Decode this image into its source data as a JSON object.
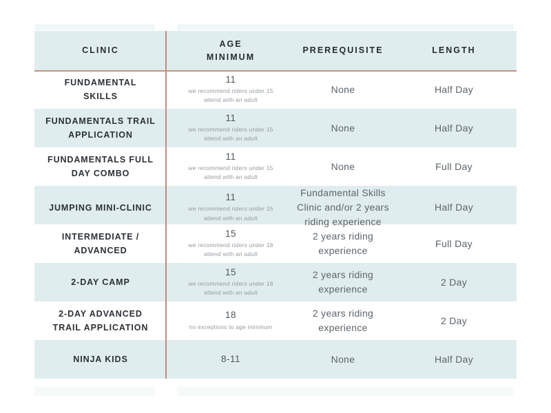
{
  "table": {
    "columns": [
      {
        "label": "CLINIC"
      },
      {
        "label": "AGE\nMINIMUM"
      },
      {
        "label": "PREREQUISITE"
      },
      {
        "label": "LENGTH"
      }
    ],
    "rows": [
      {
        "clinic": "FUNDAMENTAL\nSKILLS",
        "age": "11",
        "age_note": "we recommend riders under 15\nattend with an adult",
        "prerequisite": "None",
        "length": "Half Day"
      },
      {
        "clinic": "FUNDAMENTALS TRAIL\nAPPLICATION",
        "age": "11",
        "age_note": "we recommend riders under 15\nattend with an adult",
        "prerequisite": "None",
        "length": "Half Day"
      },
      {
        "clinic": "FUNDAMENTALS FULL\nDAY COMBO",
        "age": "11",
        "age_note": "we recommend riders under 15\nattend with an adult",
        "prerequisite": "None",
        "length": "Full Day"
      },
      {
        "clinic": "JUMPING MINI-CLINIC",
        "age": "11",
        "age_note": "we recommend riders under 15\nattend with an adult",
        "prerequisite": "Fundamental Skills\nClinic and/or 2 years\nriding experience",
        "length": "Half Day"
      },
      {
        "clinic": "INTERMEDIATE /\nADVANCED",
        "age": "15",
        "age_note": "we recommend riders under 18\nattend with an adult",
        "prerequisite": "2 years riding\nexperience",
        "length": "Full Day"
      },
      {
        "clinic": "2-DAY CAMP",
        "age": "15",
        "age_note": "we recommend riders under 18\nattend with an adult",
        "prerequisite": "2 years riding\nexperience",
        "length": "2 Day"
      },
      {
        "clinic": "2-DAY ADVANCED\nTRAIL APPLICATION",
        "age": "18",
        "age_note": "no exceptions to age minimum",
        "prerequisite": "2 years riding\nexperience",
        "length": "2 Day"
      },
      {
        "clinic": "NINJA KIDS",
        "age": "8-11",
        "age_note": "",
        "prerequisite": "None",
        "length": "Half Day"
      }
    ]
  },
  "chart_data": {
    "type": "table",
    "title": "Clinic comparison table",
    "columns": [
      "CLINIC",
      "AGE MINIMUM",
      "PREREQUISITE",
      "LENGTH"
    ],
    "rows": [
      [
        "FUNDAMENTAL SKILLS",
        "11 (we recommend riders under 15 attend with an adult)",
        "None",
        "Half Day"
      ],
      [
        "FUNDAMENTALS TRAIL APPLICATION",
        "11 (we recommend riders under 15 attend with an adult)",
        "None",
        "Half Day"
      ],
      [
        "FUNDAMENTALS FULL DAY COMBO",
        "11 (we recommend riders under 15 attend with an adult)",
        "None",
        "Full Day"
      ],
      [
        "JUMPING MINI-CLINIC",
        "11 (we recommend riders under 15 attend with an adult)",
        "Fundamental Skills Clinic and/or 2 years riding experience",
        "Half Day"
      ],
      [
        "INTERMEDIATE / ADVANCED",
        "15 (we recommend riders under 18 attend with an adult)",
        "2 years riding experience",
        "Full Day"
      ],
      [
        "2-DAY CAMP",
        "15 (we recommend riders under 18 attend with an adult)",
        "2 years riding experience",
        "2 Day"
      ],
      [
        "2-DAY ADVANCED TRAIL APPLICATION",
        "18 (no exceptions to age minimum)",
        "2 years riding experience",
        "2 Day"
      ],
      [
        "NINJA KIDS",
        "8-11",
        "None",
        "Half Day"
      ]
    ],
    "layout_hints": {
      "alternating_row_stripes": true,
      "stripe_color": "#e0edee",
      "header_background": "#e0edee",
      "divider_after_first_column": true
    }
  },
  "colors": {
    "row_stripe": "#e0edee",
    "column_divider": "#c08b7c",
    "header_rule": "#c4927f",
    "header_text": "#262b31",
    "clinic_text": "#2b3036",
    "body_text": "#5b646b",
    "note_text": "#939aa1",
    "background": "#ffffff"
  }
}
